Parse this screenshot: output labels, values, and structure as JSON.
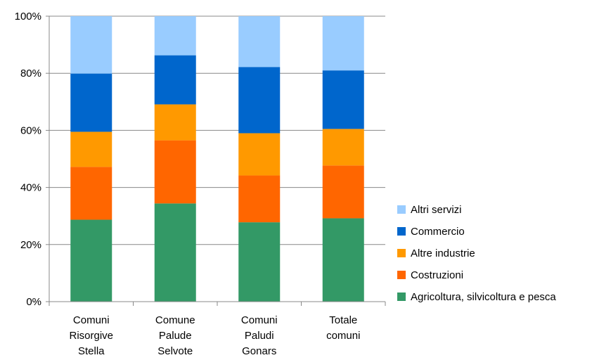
{
  "chart_data": {
    "type": "bar",
    "stacked": true,
    "percent": true,
    "categories": [
      [
        "Comuni",
        "Risorgive",
        "Stella"
      ],
      [
        "Comune",
        "Palude",
        "Selvote"
      ],
      [
        "Comuni",
        "Paludi",
        "Gonars"
      ],
      [
        "Totale",
        "comuni"
      ]
    ],
    "series": [
      {
        "name": "Agricoltura, silvicoltura e pesca",
        "color": "#339966",
        "values": [
          28.7,
          34.4,
          27.8,
          29.2
        ]
      },
      {
        "name": "Costruzioni",
        "color": "#FF6600",
        "values": [
          18.5,
          22.1,
          16.4,
          18.5
        ]
      },
      {
        "name": "Altre industrie",
        "color": "#FF9900",
        "values": [
          12.3,
          12.6,
          14.8,
          12.8
        ]
      },
      {
        "name": "Commercio",
        "color": "#0066CC",
        "values": [
          20.4,
          17.2,
          23.2,
          20.5
        ]
      },
      {
        "name": "Altri servizi",
        "color": "#99CCFF",
        "values": [
          20.1,
          13.7,
          17.8,
          19.0
        ]
      }
    ],
    "yticks": [
      "0%",
      "20%",
      "40%",
      "60%",
      "80%",
      "100%"
    ],
    "ylim": [
      0,
      100
    ],
    "grid": true,
    "legend": "right",
    "legend_order": "reversed"
  }
}
